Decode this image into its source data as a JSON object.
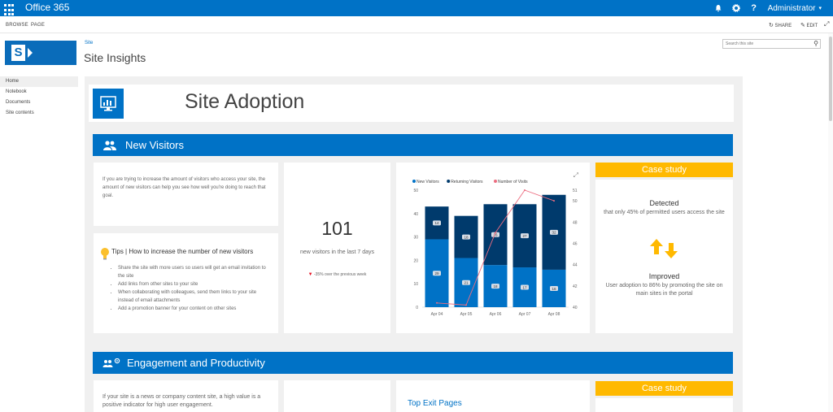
{
  "suite": {
    "app_name": "Office 365",
    "user_name": "Administrator"
  },
  "ribbon": {
    "tabs": [
      "BROWSE",
      "PAGE"
    ],
    "share_label": "SHARE",
    "edit_label": "EDIT"
  },
  "header": {
    "breadcrumb": "Site",
    "title": "Site Insights",
    "search_placeholder": "Search this site"
  },
  "nav": {
    "items": [
      "Home",
      "Notebook",
      "Documents",
      "Site contents"
    ]
  },
  "adoption": {
    "title": "Site Adoption"
  },
  "new_visitors": {
    "title": "New Visitors",
    "intro": "If you are trying to increase the amount of visitors who access your site, the amount of new visitors can help you see how well you're doing to reach that goal.",
    "tips_title": "Tips | How to increase the number of new visitors",
    "tips": [
      "Share the site with more users so users will get an email invitation to the site",
      "Add links from other sites to your site",
      "When collaborating with colleagues, send them links to your site instead of email attachments",
      "Add a promotion banner for your content on other sites"
    ],
    "kpi_value": "101",
    "kpi_caption": "new visitors in the last 7 days",
    "kpi_change": "-35% over the previous week"
  },
  "case_study_1": {
    "header": "Case study",
    "detected_label": "Detected",
    "detected_text": "that only 45% of permitted users access the site",
    "improved_label": "Improved",
    "improved_text": "User adoption to 86% by promoting the site on main sites in the portal"
  },
  "engagement": {
    "title": "Engagement and Productivity",
    "intro": "If your site is a news or company content site, a high value is a positive indicator for high user engagement.",
    "top_exit_title": "Top Exit Pages",
    "case_study_header": "Case study"
  },
  "colors": {
    "brand": "#0072c6",
    "new_visitors": "#0072c6",
    "returning_visitors": "#003a6c",
    "line": "#ec6d80",
    "accent_yellow": "#ffb900"
  },
  "chart_data": {
    "type": "bar",
    "categories": [
      "Apr 04",
      "Apr 05",
      "Apr 06",
      "Apr 07",
      "Apr 08"
    ],
    "series": [
      {
        "name": "New Visitors",
        "values": [
          29,
          21,
          18,
          17,
          16
        ]
      },
      {
        "name": "Returning Visitors",
        "values": [
          14,
          18,
          26,
          27,
          32
        ]
      },
      {
        "name": "Number of Visits",
        "axis": "right",
        "values": [
          40.4,
          40.2,
          47,
          51,
          50
        ]
      }
    ],
    "ylim": [
      0,
      50
    ],
    "yticks": [
      0,
      10,
      20,
      30,
      40,
      50
    ],
    "y2lim": [
      40,
      51
    ],
    "y2ticks": [
      40,
      42,
      44,
      46,
      48,
      50,
      51
    ],
    "legend": "top-left",
    "grid": false
  }
}
